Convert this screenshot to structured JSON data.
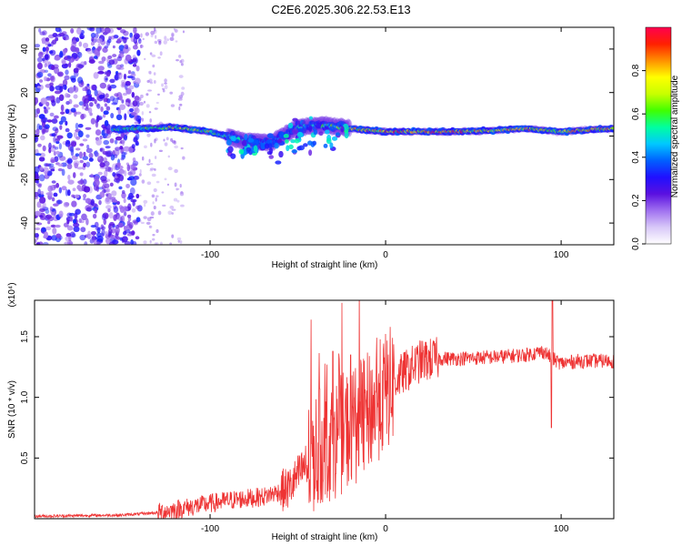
{
  "title": "C2E6.2025.306.22.53.E13",
  "chart_data": [
    {
      "type": "heatmap",
      "xlabel": "Height of straight line (km)",
      "ylabel": "Frequency (Hz)",
      "xlim": [
        -200,
        130
      ],
      "ylim": [
        -50,
        50
      ],
      "xticks": [
        -100,
        0,
        100
      ],
      "yticks": [
        -40,
        -20,
        0,
        20,
        40
      ],
      "colorbar": {
        "label": "Normalized spectral amplitude",
        "range": [
          0,
          1
        ],
        "ticks": [
          "0.0",
          "0.2",
          "0.4",
          "0.6",
          "0.8"
        ],
        "colors": [
          "#ffffff",
          "#d8c8f8",
          "#a070f0",
          "#5a10e0",
          "#2010ff",
          "#0060ff",
          "#00c8ff",
          "#00ffa0",
          "#40ff00",
          "#c8ff00",
          "#ffff00",
          "#ff9000",
          "#ff2000",
          "#ff0050"
        ]
      },
      "band": [
        {
          "x": -155,
          "f": 3.0,
          "amp": 0.55
        },
        {
          "x": -140,
          "f": 3.5,
          "amp": 0.6
        },
        {
          "x": -120,
          "f": 4.0,
          "amp": 0.75
        },
        {
          "x": -100,
          "f": 2.0,
          "amp": 0.6
        },
        {
          "x": -80,
          "f": -2.5,
          "amp": 0.45
        },
        {
          "x": -65,
          "f": -3.0,
          "amp": 0.4
        },
        {
          "x": -50,
          "f": 4.0,
          "amp": 0.5
        },
        {
          "x": -35,
          "f": 5.0,
          "amp": 0.55
        },
        {
          "x": -20,
          "f": 3.5,
          "amp": 0.75
        },
        {
          "x": 0,
          "f": 2.0,
          "amp": 0.85
        },
        {
          "x": 20,
          "f": 2.0,
          "amp": 0.9
        },
        {
          "x": 40,
          "f": 2.0,
          "amp": 0.9
        },
        {
          "x": 60,
          "f": 2.5,
          "amp": 0.7
        },
        {
          "x": 80,
          "f": 3.5,
          "amp": 0.8
        },
        {
          "x": 100,
          "f": 2.0,
          "amp": 0.75
        },
        {
          "x": 130,
          "f": 3.5,
          "amp": 0.85
        }
      ]
    },
    {
      "type": "line",
      "xlabel": "Height of straight line (km)",
      "ylabel": "SNR (10 * v/v)",
      "scale_label": "(x10⁴)",
      "xlim": [
        -200,
        130
      ],
      "ylim": [
        0,
        1.8
      ],
      "xticks": [
        -100,
        0,
        100
      ],
      "yticks": [
        0.5,
        1.0,
        1.5
      ],
      "color": "#ee3333",
      "trend": {
        "x": [
          -200,
          -150,
          -130,
          -110,
          -90,
          -70,
          -55,
          -45,
          -40,
          -35,
          -30,
          -25,
          -20,
          -15,
          -10,
          -5,
          0,
          10,
          20,
          30,
          40,
          60,
          80,
          90,
          95,
          100,
          110,
          120,
          130
        ],
        "y": [
          0.02,
          0.03,
          0.05,
          0.1,
          0.15,
          0.18,
          0.25,
          0.45,
          0.55,
          0.62,
          0.65,
          0.7,
          0.75,
          0.8,
          0.88,
          0.95,
          1.05,
          1.2,
          1.3,
          1.32,
          1.32,
          1.33,
          1.35,
          1.38,
          1.32,
          1.28,
          1.3,
          1.3,
          1.3
        ]
      },
      "features": [
        {
          "x": 95,
          "y": 1.8
        },
        {
          "x": 94.5,
          "y": 0.75
        },
        {
          "x": -30,
          "y": 1.38
        },
        {
          "x": -20,
          "y": 1.35
        }
      ]
    }
  ]
}
